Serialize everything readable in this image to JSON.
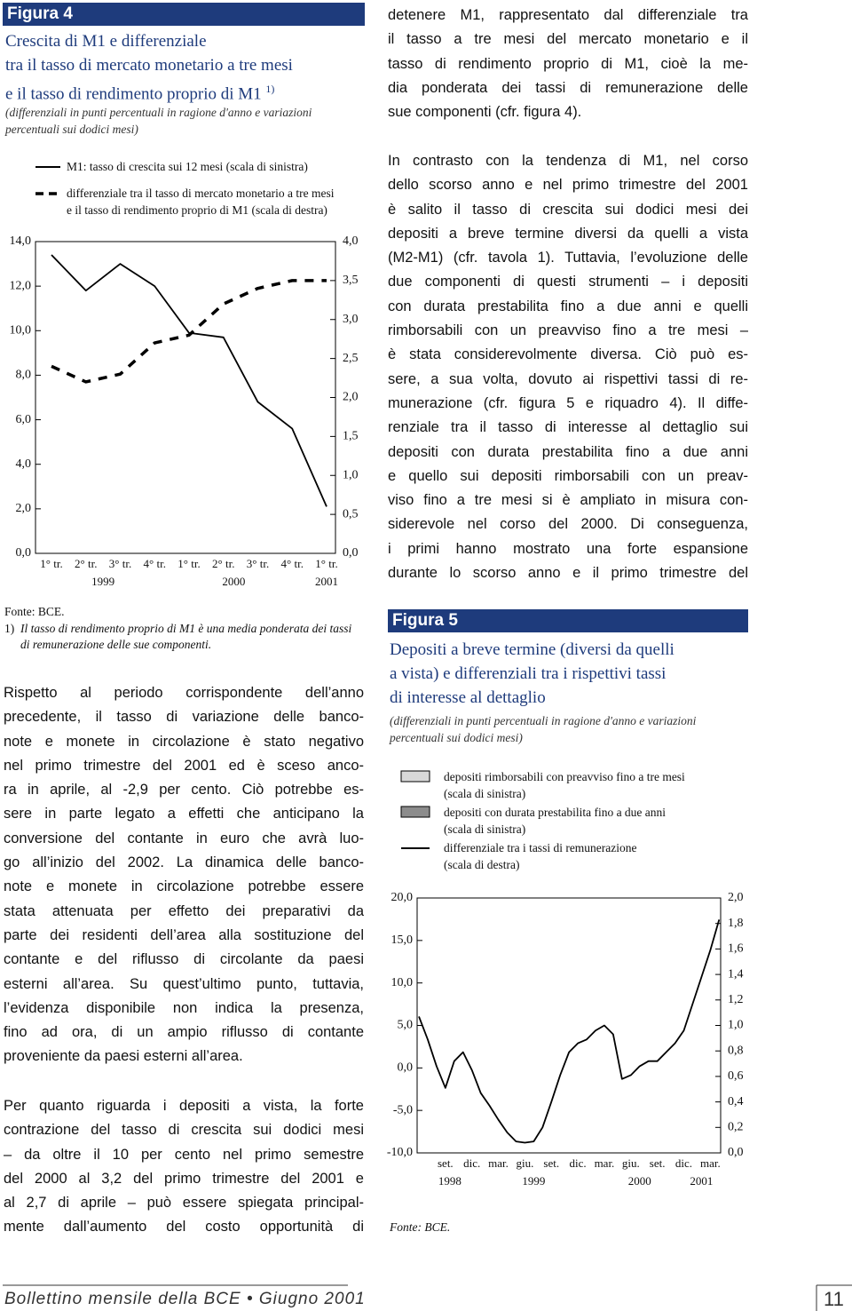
{
  "figure4": {
    "label": "Figura 4",
    "title_lines": [
      "Crescita di M1 e differenziale",
      "tra il tasso di mercato monetario a tre mesi",
      "e il tasso di rendimento proprio di M1"
    ],
    "title_note": "1)",
    "subtitle_lines": [
      "(differenziali in punti percentuali in ragione d'anno e variazioni",
      "percentuali sui dodici mesi)"
    ],
    "source": "Fonte: BCE.",
    "note_marker": "1)",
    "note": "Il tasso di rendimento proprio di M1 è una media ponderata dei tassi di remunerazione delle sue componenti."
  },
  "figure5": {
    "label": "Figura 5",
    "title_lines": [
      "Depositi a breve termine (diversi da quelli",
      "a vista) e differenziali tra i rispettivi tassi",
      "di interesse al dettaglio"
    ],
    "subtitle_lines": [
      "(differenziali in punti percentuali in ragione d'anno e variazioni",
      "percentuali sui dodici mesi)"
    ],
    "source": "Fonte: BCE."
  },
  "text": {
    "right_paragraphs": [
      [
        "detenere M1, rappresentato dal differenziale tra",
        "il tasso a tre mesi del mercato monetario e il",
        "tasso di rendimento proprio di M1, cioè la me-",
        "dia ponderata dei tassi di remunerazione delle",
        "sue componenti (cfr. figura 4)."
      ],
      [
        "In contrasto con la tendenza di M1, nel corso",
        "dello scorso anno e nel primo trimestre del 2001",
        "è salito il tasso di crescita sui dodici mesi dei",
        "depositi a breve termine diversi da quelli a vista",
        "(M2-M1) (cfr. tavola 1). Tuttavia, l’evoluzione delle",
        "due componenti di questi strumenti – i depositi",
        "con durata  prestabilita fino a due anni e quelli",
        "rimborsabili con un preavviso fino a tre mesi –",
        "è stata considerevolmente diversa. Ciò può es-",
        "sere, a sua volta, dovuto ai rispettivi tassi di re-",
        "munerazione (cfr. figura 5 e riquadro 4). Il diffe-",
        "renziale tra il tasso di interesse al dettaglio sui",
        "depositi con durata prestabilita fino a due anni",
        "e quello sui depositi rimborsabili con un preav-",
        "viso fino a tre mesi si è ampliato in misura con-",
        "siderevole nel corso del 2000. Di conseguenza,",
        "i primi hanno mostrato una forte espansione",
        "durante lo scorso anno e il primo trimestre del"
      ]
    ],
    "left_paragraphs": [
      [
        "Rispetto al periodo corrispondente dell’anno",
        "precedente, il tasso di variazione delle banco-",
        "note e monete in circolazione è stato negativo",
        "nel primo trimestre del 2001 ed è sceso anco-",
        "ra in aprile, al -2,9 per cento. Ciò potrebbe es-",
        "sere in parte legato a effetti che anticipano la",
        "conversione del contante in euro che avrà luo-",
        "go all’inizio del 2002. La dinamica delle banco-",
        "note e monete in circolazione potrebbe essere",
        "stata attenuata per effetto dei preparativi da",
        "parte dei residenti dell’area alla sostituzione del",
        "contante e del riflusso di circolante da paesi",
        "esterni all’area. Su quest’ultimo punto, tuttavia,",
        "l’evidenza disponibile non indica la presenza,",
        "fino ad ora, di un ampio riflusso di contante",
        "proveniente da paesi esterni all’area."
      ],
      [
        "Per quanto riguarda i depositi a vista, la forte",
        "contrazione del tasso di crescita sui dodici mesi",
        "– da oltre il 10 per cento nel primo semestre",
        "del 2000 al 3,2 del primo trimestre del 2001 e",
        "al 2,7 di aprile – può essere spiegata principal-",
        "mente dall’aumento del costo opportunità di"
      ]
    ]
  },
  "footer": {
    "journal": "Bollettino mensile della BCE • Giugno 2001",
    "page": "11"
  },
  "chart_data": [
    {
      "type": "line",
      "categories": [
        "1° tr.",
        "2° tr.",
        "3° tr.",
        "4° tr.",
        "1° tr.",
        "2° tr.",
        "3° tr.",
        "4° tr.",
        "1° tr."
      ],
      "year_labels": [
        "1999",
        "2000",
        "2001"
      ],
      "ylim": [
        0,
        14
      ],
      "yticks": [
        {
          "value": 0,
          "label": "0,0"
        },
        {
          "value": 2,
          "label": "2,0"
        },
        {
          "value": 4,
          "label": "4,0"
        },
        {
          "value": 6,
          "label": "6,0"
        },
        {
          "value": 8,
          "label": "8,0"
        },
        {
          "value": 10,
          "label": "10,0"
        },
        {
          "value": 12,
          "label": "12,0"
        },
        {
          "value": 14,
          "label": "14,0"
        }
      ],
      "y2lim": [
        0,
        4
      ],
      "y2ticks": [
        {
          "value": 0,
          "label": "0,0"
        },
        {
          "value": 0.5,
          "label": "0,5"
        },
        {
          "value": 1,
          "label": "1,0"
        },
        {
          "value": 1.5,
          "label": "1,5"
        },
        {
          "value": 2,
          "label": "2,0"
        },
        {
          "value": 2.5,
          "label": "2,5"
        },
        {
          "value": 3,
          "label": "3,0"
        },
        {
          "value": 3.5,
          "label": "3,5"
        },
        {
          "value": 4,
          "label": "4,0"
        }
      ],
      "series": [
        {
          "name": "M1: tasso di crescita sui 12 mesi (scala di sinistra)",
          "color": "#000000",
          "style": "solid",
          "values": [
            13.4,
            11.8,
            13.0,
            12.0,
            9.9,
            9.7,
            6.8,
            5.6,
            2.1
          ]
        },
        {
          "name": "differenziale tra il tasso di mercato monetario a tre mesi\ne il tasso di rendimento proprio di M1 (scala di destra)",
          "color": "#000000",
          "style": "dashed",
          "axis": "y2",
          "values": [
            2.4,
            2.2,
            2.3,
            2.7,
            2.8,
            3.2,
            3.4,
            3.5,
            3.5
          ]
        }
      ]
    },
    {
      "type": "line",
      "categories": [
        null,
        null,
        null,
        "set.",
        null,
        null,
        "dic.",
        null,
        null,
        "mar.",
        null,
        null,
        "giu.",
        null,
        null,
        "set.",
        null,
        null,
        "dic.",
        null,
        null,
        "mar.",
        null,
        null,
        "giu.",
        null,
        null,
        "set.",
        null,
        null,
        "dic.",
        null,
        null,
        "mar.",
        null
      ],
      "year_labels": [
        "1998",
        "1999",
        "2000",
        "2001"
      ],
      "ylim": [
        -10,
        20
      ],
      "yticks": [
        {
          "value": -10,
          "label": "-10,0"
        },
        {
          "value": -5,
          "label": "-5,0"
        },
        {
          "value": 0,
          "label": "0,0"
        },
        {
          "value": 5,
          "label": "5,0"
        },
        {
          "value": 10,
          "label": "10,0"
        },
        {
          "value": 15,
          "label": "15,0"
        },
        {
          "value": 20,
          "label": "20,0"
        }
      ],
      "y2lim": [
        0,
        2
      ],
      "y2ticks": [
        {
          "value": 0,
          "label": "0,0"
        },
        {
          "value": 0.2,
          "label": "0,2"
        },
        {
          "value": 0.4,
          "label": "0,4"
        },
        {
          "value": 0.6,
          "label": "0,6"
        },
        {
          "value": 0.8,
          "label": "0,8"
        },
        {
          "value": 1,
          "label": "1,0"
        },
        {
          "value": 1.2,
          "label": "1,2"
        },
        {
          "value": 1.4,
          "label": "1,4"
        },
        {
          "value": 1.6,
          "label": "1,6"
        },
        {
          "value": 1.8,
          "label": "1,8"
        },
        {
          "value": 2,
          "label": "2,0"
        }
      ],
      "legend": [
        {
          "name": "depositi rimborsabili con preavviso fino a tre mesi\n(scala di sinistra)",
          "color": "#d9d9d9"
        },
        {
          "name": "depositi con durata prestabilita fino a due anni\n(scala di sinistra)",
          "color": "#8c8c8c"
        }
      ],
      "series": [
        {
          "name": "differenziale tra i tassi di remunerazione\n(scala di destra)",
          "color": "#000000",
          "style": "solid",
          "axis": "y2",
          "values": [
            1.07,
            0.89,
            0.68,
            0.51,
            0.72,
            0.79,
            0.65,
            0.47,
            0.37,
            0.26,
            0.16,
            0.09,
            0.08,
            0.09,
            0.2,
            0.4,
            0.61,
            0.79,
            0.86,
            0.89,
            0.96,
            1.0,
            0.93,
            0.58,
            0.61,
            0.68,
            0.72,
            0.72,
            0.79,
            0.86,
            0.96,
            1.17,
            1.38,
            1.59,
            1.83
          ]
        }
      ]
    }
  ]
}
